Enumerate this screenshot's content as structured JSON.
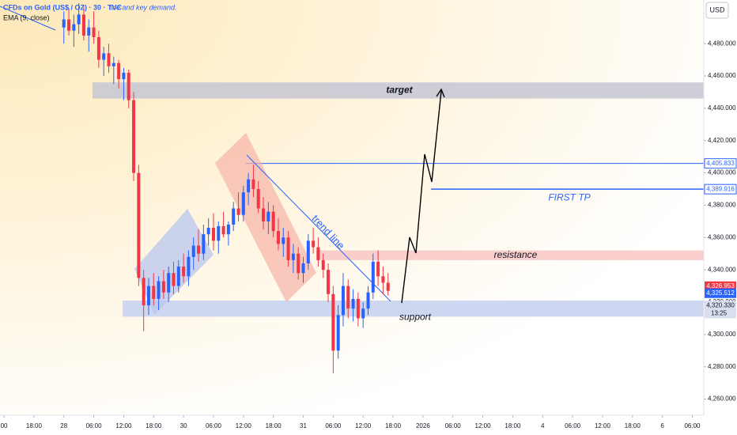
{
  "chart_data": {
    "type": "candlestick",
    "title": "CFDs on Gold (US$ / OZ) · 30 · TVC",
    "subtitle": "line and key demand.",
    "indicator": "EMA (9, close)",
    "currency": "USD",
    "up_color": "#2962ff",
    "down_color": "#f23645",
    "grid": false,
    "open": [
      4490,
      4495,
      4488,
      4492,
      4498,
      4485,
      4490,
      4484,
      4470,
      4474,
      4466,
      4468,
      4458,
      4462,
      4445,
      4400,
      4335,
      4318,
      4330,
      4322,
      4333,
      4326,
      4338,
      4330,
      4342,
      4336,
      4348,
      4355,
      4350,
      4362,
      4366,
      4358,
      4367,
      4362,
      4368,
      4378,
      4374,
      4388,
      4396,
      4390,
      4378,
      4370,
      4376,
      4364,
      4356,
      4360,
      4346,
      4350,
      4338,
      4344,
      4358,
      4354,
      4346,
      4340,
      4325,
      4290,
      4312,
      4330,
      4316,
      4322,
      4310,
      4316,
      4326,
      4345,
      4336,
      4332
    ],
    "high": [
      4500,
      4502,
      4498,
      4505,
      4503,
      4495,
      4500,
      4488,
      4478,
      4480,
      4472,
      4470,
      4465,
      4464,
      4450,
      4405,
      4340,
      4335,
      4338,
      4336,
      4340,
      4342,
      4345,
      4346,
      4350,
      4352,
      4360,
      4365,
      4368,
      4372,
      4375,
      4370,
      4376,
      4370,
      4382,
      4388,
      4392,
      4400,
      4405,
      4395,
      4385,
      4382,
      4380,
      4372,
      4366,
      4364,
      4356,
      4354,
      4348,
      4362,
      4366,
      4360,
      4350,
      4344,
      4330,
      4318,
      4338,
      4334,
      4328,
      4326,
      4320,
      4330,
      4350,
      4352,
      4342,
      4338
    ],
    "low": [
      4480,
      4485,
      4478,
      4486,
      4482,
      4475,
      4480,
      4465,
      4460,
      4462,
      4455,
      4452,
      4445,
      4440,
      4395,
      4330,
      4302,
      4312,
      4318,
      4315,
      4322,
      4320,
      4325,
      4326,
      4332,
      4330,
      4340,
      4345,
      4346,
      4355,
      4352,
      4350,
      4360,
      4355,
      4364,
      4370,
      4370,
      4380,
      4385,
      4375,
      4365,
      4362,
      4360,
      4352,
      4348,
      4342,
      4338,
      4334,
      4332,
      4340,
      4350,
      4342,
      4335,
      4320,
      4276,
      4285,
      4305,
      4310,
      4308,
      4305,
      4304,
      4312,
      4322,
      4330,
      4325,
      4324
    ],
    "close": [
      4495,
      4488,
      4492,
      4498,
      4485,
      4490,
      4484,
      4470,
      4474,
      4466,
      4468,
      4458,
      4462,
      4445,
      4400,
      4335,
      4318,
      4330,
      4322,
      4333,
      4326,
      4338,
      4330,
      4342,
      4336,
      4348,
      4355,
      4350,
      4362,
      4366,
      4358,
      4367,
      4362,
      4368,
      4378,
      4374,
      4388,
      4396,
      4390,
      4378,
      4370,
      4376,
      4364,
      4356,
      4360,
      4346,
      4350,
      4338,
      4344,
      4358,
      4354,
      4346,
      4340,
      4325,
      4290,
      4312,
      4330,
      4316,
      4322,
      4310,
      4316,
      4326,
      4345,
      4336,
      4332,
      4327
    ],
    "ylim": [
      4250,
      4507
    ],
    "yticks": [
      {
        "value": 4260,
        "label": "4,260.000"
      },
      {
        "value": 4280,
        "label": "4,280.000"
      },
      {
        "value": 4300,
        "label": "4,300.000"
      },
      {
        "value": 4320,
        "label": "4,320.000"
      },
      {
        "value": 4340,
        "label": "4,340.000"
      },
      {
        "value": 4360,
        "label": "4,360.000"
      },
      {
        "value": 4380,
        "label": "4,380.000"
      },
      {
        "value": 4400,
        "label": "4,400.000"
      },
      {
        "value": 4420,
        "label": "4,420.000"
      },
      {
        "value": 4440,
        "label": "4,440.000"
      },
      {
        "value": 4460,
        "label": "4,460.000"
      },
      {
        "value": 4480,
        "label": "4,480.000"
      }
    ],
    "xlim": [
      -12.8,
      128.3
    ],
    "xticks": [
      {
        "value": -12,
        "label": "00"
      },
      {
        "value": -6,
        "label": "18:00"
      },
      {
        "value": 0,
        "label": "28"
      },
      {
        "value": 6,
        "label": "06:00"
      },
      {
        "value": 12,
        "label": "12:00"
      },
      {
        "value": 18,
        "label": "18:00"
      },
      {
        "value": 24,
        "label": "30"
      },
      {
        "value": 30,
        "label": "06:00"
      },
      {
        "value": 36,
        "label": "12:00"
      },
      {
        "value": 42,
        "label": "18:00"
      },
      {
        "value": 48,
        "label": "31"
      },
      {
        "value": 54,
        "label": "06:00"
      },
      {
        "value": 60,
        "label": "12:00"
      },
      {
        "value": 66,
        "label": "18:00"
      },
      {
        "value": 72,
        "label": "2026"
      },
      {
        "value": 78,
        "label": "06:00"
      },
      {
        "value": 84,
        "label": "12:00"
      },
      {
        "value": 90,
        "label": "18:00"
      },
      {
        "value": 96,
        "label": "4"
      },
      {
        "value": 102,
        "label": "06:00"
      },
      {
        "value": 108,
        "label": "12:00"
      },
      {
        "value": 114,
        "label": "18:00"
      },
      {
        "value": 120,
        "label": "6"
      },
      {
        "value": 126,
        "label": "06:00"
      }
    ],
    "zones": [
      {
        "label": "target",
        "range": [
          4446,
          4456
        ],
        "color": "#c9c9d4"
      },
      {
        "label": "resistance",
        "range": [
          4346,
          4352
        ],
        "color": "#f8c9c6"
      },
      {
        "label": "support",
        "range": [
          4311,
          4321
        ],
        "color": "#c9d3f0"
      }
    ],
    "levels": [
      {
        "value": 4405.833,
        "label": "4,405.833"
      },
      {
        "value": 4389.916,
        "label": "4,389.916",
        "name": "FIRST TP"
      }
    ],
    "price_tags": [
      {
        "value": 4326.953,
        "label": "4,326.953",
        "color": "#f23645"
      },
      {
        "value": 4325.512,
        "label": "4,325.512",
        "color": "#2962ff"
      },
      {
        "value": 4320.33,
        "label": "4,320.330",
        "time": "13:25"
      }
    ],
    "trend_label": "trend line"
  }
}
